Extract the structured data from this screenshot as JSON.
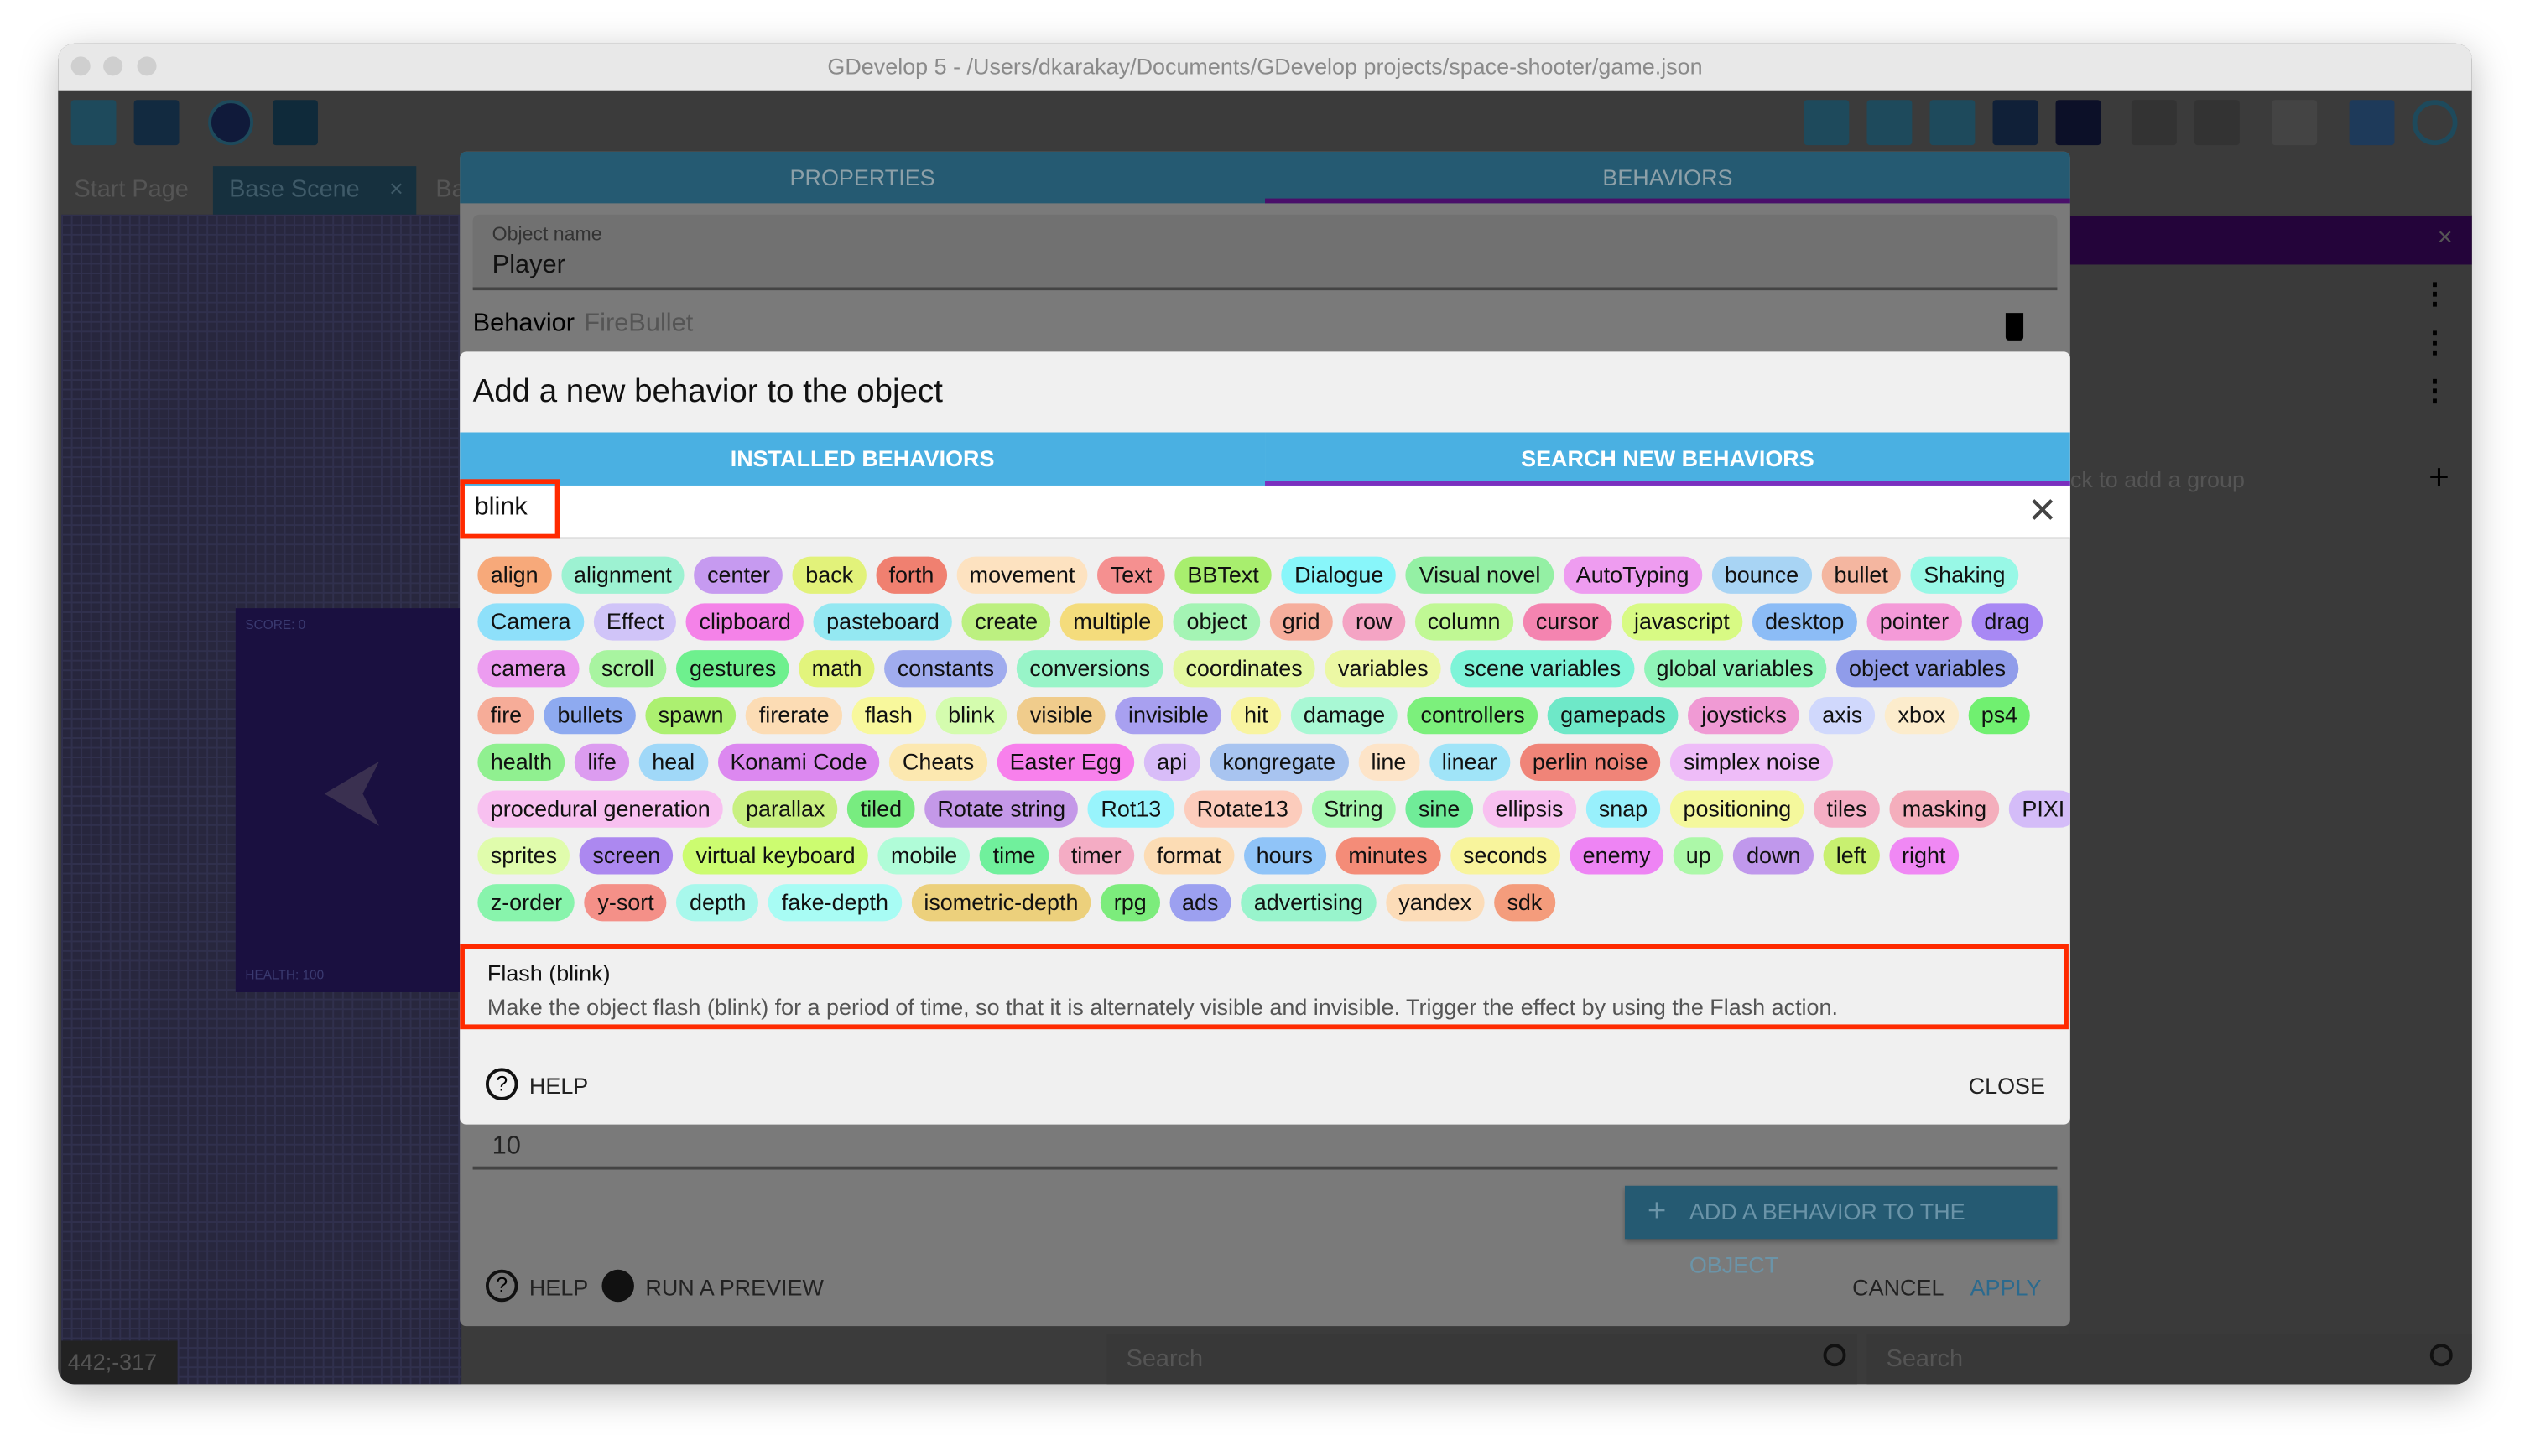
{
  "window": {
    "title": "GDevelop 5 - /Users/dkarakay/Documents/GDevelop projects/space-shooter/game.json"
  },
  "editor_tabs": [
    {
      "label": "Start Page"
    },
    {
      "label": "Base Scene",
      "close": "×"
    },
    {
      "label": "Ba"
    }
  ],
  "scene_preview": {
    "score": "SCORE: 0",
    "health": "HEALTH: 100"
  },
  "coords": "442;-317",
  "right_panel": {
    "close": "×",
    "add_group": "ck to add a group",
    "add": "+"
  },
  "bottom_search": [
    {
      "placeholder": "Search"
    },
    {
      "placeholder": "Search"
    }
  ],
  "outer_dialog": {
    "tabs": [
      {
        "label": "PROPERTIES"
      },
      {
        "label": "BEHAVIORS"
      }
    ],
    "object_name_label": "Object name",
    "object_name": "Player",
    "behavior_label": "Behavior",
    "behavior_name": "FireBullet",
    "field_value": "10",
    "add_behavior": "ADD A BEHAVIOR TO THE OBJECT",
    "help": "HELP",
    "run_preview": "RUN A PREVIEW",
    "cancel": "CANCEL",
    "apply": "APPLY"
  },
  "inner_dialog": {
    "title": "Add a new behavior to the object",
    "tabs": [
      {
        "label": "INSTALLED BEHAVIORS"
      },
      {
        "label": "SEARCH NEW BEHAVIORS"
      }
    ],
    "search_value": "blink",
    "result": {
      "title": "Flash (blink)",
      "description": "Make the object flash (blink) for a period of time, so that it is alternately visible and invisible. Trigger the effect by using the Flash action."
    },
    "help": "HELP",
    "close": "CLOSE"
  },
  "tag_rows": [
    [
      [
        "align",
        "#f7a97a"
      ],
      [
        "alignment",
        "#9df2d2"
      ],
      [
        "center",
        "#c69af0"
      ],
      [
        "back",
        "#e2f27a"
      ],
      [
        "forth",
        "#f08070"
      ],
      [
        "movement",
        "#fde2c0"
      ],
      [
        "Text",
        "#f59090"
      ],
      [
        "BBText",
        "#a8ee6e"
      ],
      [
        "Dialogue",
        "#88f6fa"
      ],
      [
        "Visual novel",
        "#94f0a4"
      ],
      [
        "AutoTyping",
        "#ee9cf0"
      ],
      [
        "bounce",
        "#a8d4f4"
      ],
      [
        "bullet",
        "#f4b6a0"
      ],
      [
        "Shaking",
        "#98f8e6"
      ]
    ],
    [
      [
        "Camera",
        "#8ee0fa"
      ],
      [
        "Effect",
        "#d0c4f8"
      ],
      [
        "clipboard",
        "#f482e8"
      ],
      [
        "pasteboard",
        "#94e8f2"
      ],
      [
        "create",
        "#bcf080"
      ],
      [
        "multiple",
        "#f4dc7c"
      ],
      [
        "object",
        "#a4f4b4"
      ],
      [
        "grid",
        "#f6ae9c"
      ],
      [
        "row",
        "#f4a4c4"
      ],
      [
        "column",
        "#c0f894"
      ],
      [
        "cursor",
        "#f484b0"
      ],
      [
        "javascript",
        "#d8fa84"
      ],
      [
        "desktop",
        "#8cbcf6"
      ],
      [
        "pointer",
        "#f49ad8"
      ],
      [
        "drag",
        "#a888f4"
      ]
    ],
    [
      [
        "camera",
        "#ec9cf0"
      ],
      [
        "scroll",
        "#a8f4a0"
      ],
      [
        "gestures",
        "#6ef08e"
      ],
      [
        "math",
        "#e2f47c"
      ],
      [
        "constants",
        "#a0acee"
      ],
      [
        "conversions",
        "#98f4c8"
      ],
      [
        "coordinates",
        "#e4f8a0"
      ],
      [
        "variables",
        "#ecf8a4"
      ],
      [
        "scene variables",
        "#7ef4d8"
      ],
      [
        "global variables",
        "#90f4b8"
      ],
      [
        "object variables",
        "#909cea"
      ]
    ],
    [
      [
        "fire",
        "#f6ac98"
      ],
      [
        "bullets",
        "#8eaaf0"
      ],
      [
        "spawn",
        "#acf070"
      ],
      [
        "firerate",
        "#fcdcb4"
      ],
      [
        "flash",
        "#f8f89c"
      ],
      [
        "blink",
        "#d4fcae"
      ],
      [
        "visible",
        "#f0cc8c"
      ],
      [
        "invisible",
        "#a8a0f0"
      ],
      [
        "hit",
        "#f8f4a0"
      ],
      [
        "damage",
        "#a8f8d4"
      ],
      [
        "controllers",
        "#7cf07c"
      ],
      [
        "gamepads",
        "#6ee8c8"
      ],
      [
        "joysticks",
        "#f09ad4"
      ],
      [
        "axis",
        "#d0d8fc"
      ],
      [
        "xbox",
        "#fceccc"
      ],
      [
        "ps4",
        "#70f070"
      ]
    ],
    [
      [
        "health",
        "#90f090"
      ],
      [
        "life",
        "#dc9cf0"
      ],
      [
        "heal",
        "#a0d8f8"
      ],
      [
        "Konami Code",
        "#dc88f0"
      ],
      [
        "Cheats",
        "#fce8b0"
      ],
      [
        "Easter Egg",
        "#f880ec"
      ],
      [
        "api",
        "#d8bcf8"
      ],
      [
        "kongregate",
        "#a8c4f0"
      ],
      [
        "line",
        "#fde4c8"
      ],
      [
        "linear",
        "#a0e4f8"
      ],
      [
        "perlin noise",
        "#f08478"
      ],
      [
        "simplex noise",
        "#eebcf8"
      ]
    ],
    [
      [
        "procedural generation",
        "#f8c0f0"
      ],
      [
        "parallax",
        "#c8f080"
      ],
      [
        "tiled",
        "#78ec80"
      ],
      [
        "Rotate string",
        "#c498e8"
      ],
      [
        "Rot13",
        "#98f4fc"
      ],
      [
        "Rotate13",
        "#fcccbc"
      ],
      [
        "String",
        "#a8f8b0"
      ],
      [
        "sine",
        "#70ec98"
      ],
      [
        "ellipsis",
        "#f8c0f0"
      ],
      [
        "snap",
        "#98f0fc"
      ],
      [
        "positioning",
        "#f4f89c"
      ],
      [
        "tiles",
        "#f4aec4"
      ],
      [
        "masking",
        "#f4aebc"
      ],
      [
        "PIXI",
        "#d4bcf8"
      ]
    ],
    [
      [
        "sprites",
        "#e0fcac"
      ],
      [
        "screen",
        "#ac88f0"
      ],
      [
        "virtual keyboard",
        "#ccfc70"
      ],
      [
        "mobile",
        "#b0fcd8"
      ],
      [
        "time",
        "#70f09c"
      ],
      [
        "timer",
        "#f4acc4"
      ],
      [
        "format",
        "#fcdcb4"
      ],
      [
        "hours",
        "#90c4f8"
      ],
      [
        "minutes",
        "#f48c78"
      ],
      [
        "seconds",
        "#f8f49c"
      ],
      [
        "enemy",
        "#ee84f4"
      ],
      [
        "up",
        "#acf8a8"
      ],
      [
        "down",
        "#c098ec"
      ],
      [
        "left",
        "#c8f070"
      ],
      [
        "right",
        "#f088f4"
      ]
    ],
    [
      [
        "z-order",
        "#88f4ac"
      ],
      [
        "y-sort",
        "#f49088"
      ],
      [
        "depth",
        "#a8f8ec"
      ],
      [
        "fake-depth",
        "#a8fcf4"
      ],
      [
        "isometric-depth",
        "#ecd07c"
      ],
      [
        "rpg",
        "#7cec7c"
      ],
      [
        "ads",
        "#9ca0f0"
      ],
      [
        "advertising",
        "#98f4cc"
      ],
      [
        "yandex",
        "#fcdcb8"
      ],
      [
        "sdk",
        "#f49c7c"
      ]
    ]
  ],
  "colors": {
    "highlight_box": "#ff2a00",
    "tab_blue": "#4ab0e2",
    "tab_indicator": "#7b2fbe",
    "dimmed_header": "#255a72"
  }
}
